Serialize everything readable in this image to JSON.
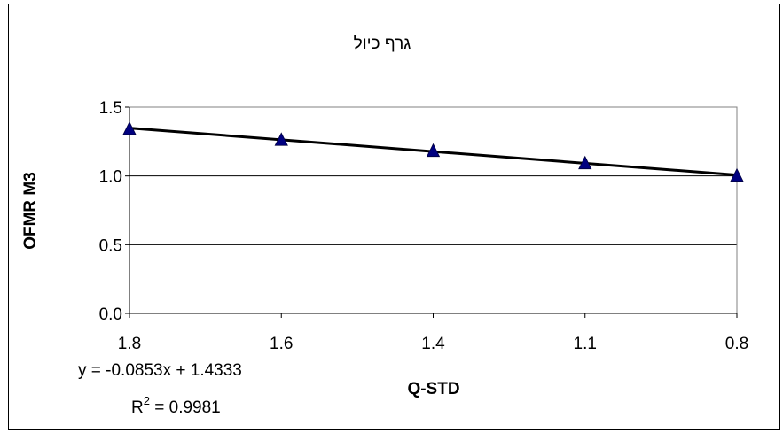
{
  "chart_data": {
    "type": "scatter",
    "title": "גרף כיול",
    "xlabel": "Q-STD",
    "ylabel": "OFMR M3",
    "categories": [
      "1.8",
      "1.6",
      "1.4",
      "1.1",
      "0.8"
    ],
    "series": [
      {
        "values": [
          1.34,
          1.26,
          1.18,
          1.09,
          1.0
        ],
        "marker": "triangle",
        "color": "#000080"
      }
    ],
    "trendline": {
      "type": "linear",
      "slope": -0.0853,
      "intercept": 1.4333,
      "color": "#000000",
      "equation": "y = -0.0853x + 1.4333",
      "r2_prefix": "R",
      "r2_sup": "2",
      "r2_value": " = 0.9981"
    },
    "ylim": [
      0,
      1.5
    ],
    "yticks": [
      "0.0",
      "0.5",
      "1.0",
      "1.5"
    ],
    "grid": true,
    "legend": "none"
  }
}
